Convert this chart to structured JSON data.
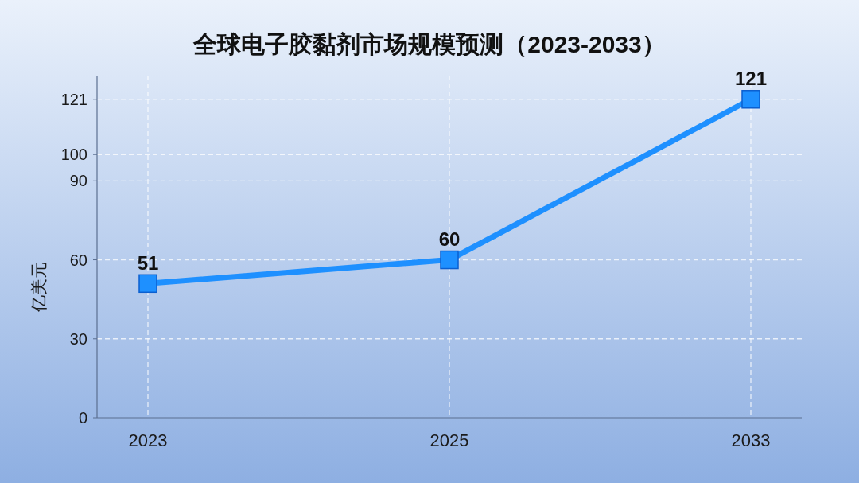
{
  "chart_data": {
    "type": "line",
    "title": "全球电子胶黏剂市场规模预测（2023-2033）",
    "ylabel": "亿美元",
    "categories": [
      "2023",
      "2025",
      "2033"
    ],
    "series": [
      {
        "color": "#1e90ff",
        "values": [
          51,
          60,
          121
        ]
      }
    ],
    "ylim": [
      0,
      130
    ],
    "yticks": [
      0,
      30,
      60,
      90,
      100,
      121
    ],
    "grid": true,
    "marker": "square",
    "line_style": "solid",
    "data_labels": true
  }
}
